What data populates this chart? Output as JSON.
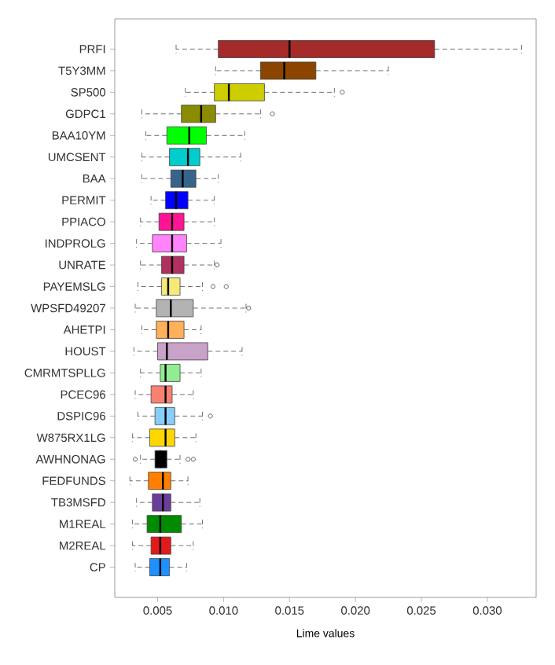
{
  "chart_data": {
    "type": "box",
    "orientation": "horizontal",
    "xlabel": "Lime values",
    "categories": [
      "PRFI",
      "T5Y3MM",
      "SP500",
      "GDPC1",
      "BAA10YM",
      "UMCSENT",
      "BAA",
      "PERMIT",
      "PPIACO",
      "INDPROLG",
      "UNRATE",
      "PAYEMSLG",
      "WPSFD49207",
      "AHETPI",
      "HOUST",
      "CMRMTSPLLG",
      "PCEC96",
      "DSPIC96",
      "W875RX1LG",
      "AWHNONAG",
      "FEDFUNDS",
      "TB3MSFD",
      "M1REAL",
      "M2REAL",
      "CP"
    ],
    "colors": [
      "#a52a2a",
      "#8b4500",
      "#cdcd00",
      "#8b8b00",
      "#00ff00",
      "#00cdcd",
      "#36648b",
      "#0000ff",
      "#ff1493",
      "#ff83fa",
      "#b03060",
      "#f5e97a",
      "#b3b3b3",
      "#ffb05a",
      "#c8a2c8",
      "#90ee90",
      "#fa8072",
      "#87cefa",
      "#ffd700",
      "#000000",
      "#ff7f00",
      "#6a3d9a",
      "#008b00",
      "#e31a1c",
      "#1e90ff"
    ],
    "boxes": [
      {
        "low": 0.0064,
        "q1": 0.0096,
        "median": 0.015,
        "q3": 0.026,
        "high": 0.0326
      },
      {
        "low": 0.0094,
        "q1": 0.0128,
        "median": 0.0146,
        "q3": 0.017,
        "high": 0.0225
      },
      {
        "low": 0.0071,
        "q1": 0.0093,
        "median": 0.0104,
        "q3": 0.0131,
        "high": 0.0184,
        "outliers": [
          0.019
        ]
      },
      {
        "low": 0.0038,
        "q1": 0.0068,
        "median": 0.0083,
        "q3": 0.0094,
        "high": 0.0128,
        "outliers": [
          0.0137
        ]
      },
      {
        "low": 0.0041,
        "q1": 0.0057,
        "median": 0.0074,
        "q3": 0.0087,
        "high": 0.0116
      },
      {
        "low": 0.0038,
        "q1": 0.0059,
        "median": 0.0073,
        "q3": 0.0082,
        "high": 0.0113
      },
      {
        "low": 0.0038,
        "q1": 0.006,
        "median": 0.0069,
        "q3": 0.0079,
        "high": 0.0096
      },
      {
        "low": 0.0045,
        "q1": 0.0056,
        "median": 0.0064,
        "q3": 0.0073,
        "high": 0.0093
      },
      {
        "low": 0.0037,
        "q1": 0.0051,
        "median": 0.0061,
        "q3": 0.007,
        "high": 0.0093
      },
      {
        "low": 0.0034,
        "q1": 0.0046,
        "median": 0.0061,
        "q3": 0.0072,
        "high": 0.0098
      },
      {
        "low": 0.0037,
        "q1": 0.0053,
        "median": 0.0061,
        "q3": 0.007,
        "high": 0.0093,
        "outliers": [
          0.0095
        ]
      },
      {
        "low": 0.0035,
        "q1": 0.0053,
        "median": 0.0058,
        "q3": 0.0067,
        "high": 0.0084,
        "outliers": [
          0.0092,
          0.0102
        ]
      },
      {
        "low": 0.0033,
        "q1": 0.0049,
        "median": 0.006,
        "q3": 0.0077,
        "high": 0.0117,
        "outliers": [
          0.0119
        ]
      },
      {
        "low": 0.0038,
        "q1": 0.0049,
        "median": 0.0058,
        "q3": 0.007,
        "high": 0.0083
      },
      {
        "low": 0.0032,
        "q1": 0.005,
        "median": 0.0057,
        "q3": 0.0088,
        "high": 0.0114
      },
      {
        "low": 0.0037,
        "q1": 0.0052,
        "median": 0.0056,
        "q3": 0.0067,
        "high": 0.0083
      },
      {
        "low": 0.0033,
        "q1": 0.0045,
        "median": 0.0056,
        "q3": 0.0061,
        "high": 0.0077
      },
      {
        "low": 0.0035,
        "q1": 0.0048,
        "median": 0.0056,
        "q3": 0.0063,
        "high": 0.0084,
        "outliers": [
          0.009
        ]
      },
      {
        "low": 0.0031,
        "q1": 0.0044,
        "median": 0.0056,
        "q3": 0.0063,
        "high": 0.0079
      },
      {
        "low": 0.0037,
        "q1": 0.0048,
        "median": 0.0052,
        "q3": 0.0057,
        "high": 0.0067,
        "outliers": [
          0.0033,
          0.0073,
          0.0077
        ]
      },
      {
        "low": 0.0029,
        "q1": 0.0043,
        "median": 0.0054,
        "q3": 0.006,
        "high": 0.0073
      },
      {
        "low": 0.0034,
        "q1": 0.0046,
        "median": 0.0054,
        "q3": 0.006,
        "high": 0.0082
      },
      {
        "low": 0.0031,
        "q1": 0.0042,
        "median": 0.0052,
        "q3": 0.0068,
        "high": 0.0084
      },
      {
        "low": 0.0031,
        "q1": 0.0045,
        "median": 0.0052,
        "q3": 0.006,
        "high": 0.0077
      },
      {
        "low": 0.0033,
        "q1": 0.0044,
        "median": 0.0052,
        "q3": 0.0059,
        "high": 0.0072
      }
    ],
    "xlim": [
      0.00175,
      0.0337
    ],
    "xticks": [
      0.005,
      {
        "value": 0.01,
        "label": "0.010"
      },
      0.015,
      {
        "value": 0.02,
        "label": "0.020"
      },
      0.025,
      {
        "value": 0.03,
        "label": "0.030"
      }
    ]
  }
}
